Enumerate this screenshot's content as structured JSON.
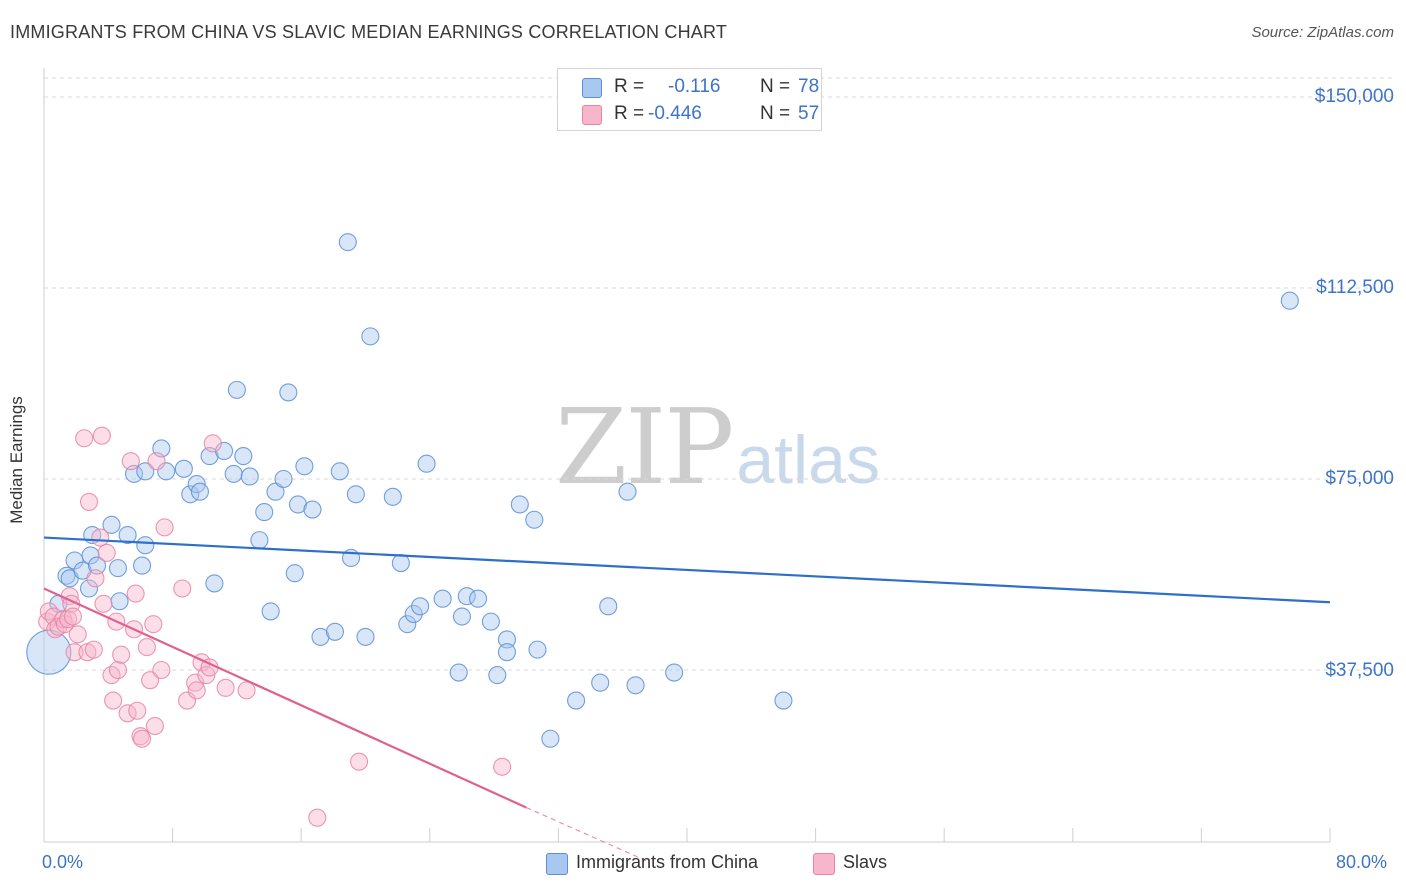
{
  "title": "IMMIGRANTS FROM CHINA VS SLAVIC MEDIAN EARNINGS CORRELATION CHART",
  "source": "Source: ZipAtlas.com",
  "watermark": {
    "zip": "ZIP",
    "atlas": "atlas"
  },
  "legend": {
    "r_label": "R =",
    "n_label": "N =",
    "rows": [
      {
        "r": "-0.116",
        "n": "78"
      },
      {
        "r": "-0.446",
        "n": "57"
      }
    ]
  },
  "colors": {
    "china_fill": "#a9c8ef",
    "china_stroke": "#5b8fd6",
    "china_line": "#2e6fcc",
    "slavs_fill": "#f7b6cb",
    "slavs_stroke": "#e685a5",
    "slavs_line": "#e0618f",
    "tick_text": "#3d74c6",
    "grid": "#d9d9d9"
  },
  "chart_data": {
    "type": "scatter",
    "title": "IMMIGRANTS FROM CHINA VS SLAVIC MEDIAN EARNINGS CORRELATION CHART",
    "xlabel": "",
    "ylabel": "Median Earnings",
    "xlim": [
      0,
      80
    ],
    "ylim": [
      0,
      155000
    ],
    "x_tick_labels": {
      "min": "0.0%",
      "max": "80.0%"
    },
    "y_ticks": [
      {
        "value": 37500,
        "label": "$37,500"
      },
      {
        "value": 75000,
        "label": "$75,000"
      },
      {
        "value": 112500,
        "label": "$112,500"
      },
      {
        "value": 150000,
        "label": "$150,000"
      }
    ],
    "series": [
      {
        "name": "Immigrants from China",
        "r": -0.116,
        "n": 78,
        "trend": {
          "x": [
            0,
            80
          ],
          "y": [
            63500,
            50800
          ]
        },
        "points": [
          [
            0.3,
            41000,
            3
          ],
          [
            0.9,
            50500,
            1
          ],
          [
            1.4,
            56000,
            1
          ],
          [
            1.6,
            55500,
            1
          ],
          [
            1.9,
            59000,
            1
          ],
          [
            2.4,
            57000,
            1
          ],
          [
            2.8,
            53500,
            1
          ],
          [
            2.9,
            60000,
            1
          ],
          [
            3.0,
            64000,
            1
          ],
          [
            3.3,
            58000,
            1
          ],
          [
            4.2,
            66000,
            1
          ],
          [
            4.6,
            57500,
            1
          ],
          [
            4.7,
            51000,
            1
          ],
          [
            5.2,
            64000,
            1
          ],
          [
            5.6,
            76000,
            1
          ],
          [
            6.1,
            58000,
            1
          ],
          [
            6.3,
            76500,
            1
          ],
          [
            6.3,
            62000,
            1
          ],
          [
            7.3,
            81000,
            1
          ],
          [
            7.6,
            76500,
            1
          ],
          [
            8.7,
            77000,
            1
          ],
          [
            9.1,
            72000,
            1
          ],
          [
            9.5,
            74000,
            1
          ],
          [
            9.7,
            72500,
            1
          ],
          [
            10.3,
            79500,
            1
          ],
          [
            10.6,
            54500,
            1
          ],
          [
            11.2,
            80500,
            1
          ],
          [
            11.8,
            76000,
            1
          ],
          [
            12.0,
            92500,
            1
          ],
          [
            12.4,
            79500,
            1
          ],
          [
            12.8,
            75500,
            1
          ],
          [
            13.4,
            63000,
            1
          ],
          [
            13.7,
            68500,
            1
          ],
          [
            14.1,
            49000,
            1
          ],
          [
            14.4,
            72500,
            1
          ],
          [
            14.9,
            75000,
            1
          ],
          [
            15.2,
            92000,
            1
          ],
          [
            15.6,
            56500,
            1
          ],
          [
            15.8,
            70000,
            1
          ],
          [
            16.2,
            77500,
            1
          ],
          [
            16.7,
            69000,
            1
          ],
          [
            17.2,
            44000,
            1
          ],
          [
            18.1,
            45000,
            1
          ],
          [
            18.4,
            76500,
            1
          ],
          [
            18.9,
            121500,
            1
          ],
          [
            19.1,
            59500,
            1
          ],
          [
            19.4,
            72000,
            1
          ],
          [
            20.0,
            44000,
            1
          ],
          [
            20.3,
            103000,
            1
          ],
          [
            21.7,
            71500,
            1
          ],
          [
            22.2,
            58500,
            1
          ],
          [
            22.6,
            46500,
            1
          ],
          [
            23.0,
            48500,
            1
          ],
          [
            23.4,
            50000,
            1
          ],
          [
            23.8,
            78000,
            1
          ],
          [
            24.8,
            51500,
            1
          ],
          [
            25.8,
            37000,
            1
          ],
          [
            26.0,
            48000,
            1
          ],
          [
            26.3,
            52000,
            1
          ],
          [
            27.0,
            51500,
            1
          ],
          [
            27.8,
            47000,
            1
          ],
          [
            28.2,
            36500,
            1
          ],
          [
            28.8,
            43500,
            1
          ],
          [
            28.8,
            41000,
            1
          ],
          [
            29.6,
            70000,
            1
          ],
          [
            30.5,
            67000,
            1
          ],
          [
            30.7,
            41500,
            1
          ],
          [
            31.5,
            24000,
            1
          ],
          [
            33.1,
            31500,
            1
          ],
          [
            34.6,
            35000,
            1
          ],
          [
            35.1,
            50000,
            1
          ],
          [
            36.3,
            72500,
            1
          ],
          [
            36.8,
            34500,
            1
          ],
          [
            39.2,
            37000,
            1
          ],
          [
            46.0,
            31500,
            1
          ],
          [
            77.5,
            110000,
            1
          ]
        ]
      },
      {
        "name": "Slavs",
        "r": -0.446,
        "n": 57,
        "trend": {
          "x": [
            0,
            30
          ],
          "y": [
            53500,
            10500
          ]
        },
        "trend_dashed": {
          "x": [
            30,
            37.5
          ],
          "y": [
            10500,
            0
          ]
        },
        "points": [
          [
            0.2,
            47000,
            1
          ],
          [
            0.3,
            49000,
            1
          ],
          [
            0.6,
            48000,
            1
          ],
          [
            0.7,
            45500,
            1
          ],
          [
            0.9,
            46000,
            1
          ],
          [
            1.2,
            47500,
            1
          ],
          [
            1.3,
            46500,
            1
          ],
          [
            1.5,
            47500,
            1
          ],
          [
            1.6,
            52000,
            1
          ],
          [
            1.7,
            50500,
            1
          ],
          [
            1.8,
            48000,
            1
          ],
          [
            1.9,
            41000,
            1
          ],
          [
            2.1,
            44500,
            1
          ],
          [
            2.5,
            83000,
            1
          ],
          [
            2.7,
            41000,
            1
          ],
          [
            2.8,
            70500,
            1
          ],
          [
            3.1,
            41500,
            1
          ],
          [
            3.2,
            55500,
            1
          ],
          [
            3.5,
            63500,
            1
          ],
          [
            3.6,
            83500,
            1
          ],
          [
            3.7,
            50500,
            1
          ],
          [
            3.9,
            60500,
            1
          ],
          [
            4.2,
            36500,
            1
          ],
          [
            4.3,
            31500,
            1
          ],
          [
            4.5,
            47000,
            1
          ],
          [
            4.6,
            37500,
            1
          ],
          [
            4.8,
            40500,
            1
          ],
          [
            5.2,
            29000,
            1
          ],
          [
            5.4,
            78500,
            1
          ],
          [
            5.6,
            45500,
            1
          ],
          [
            5.7,
            52500,
            1
          ],
          [
            5.8,
            29500,
            1
          ],
          [
            6.0,
            24500,
            1
          ],
          [
            6.1,
            24000,
            1
          ],
          [
            6.4,
            42000,
            1
          ],
          [
            6.6,
            35500,
            1
          ],
          [
            6.8,
            46500,
            1
          ],
          [
            6.9,
            26500,
            1
          ],
          [
            7.0,
            78500,
            1
          ],
          [
            7.3,
            37500,
            1
          ],
          [
            7.5,
            65500,
            1
          ],
          [
            8.6,
            53500,
            1
          ],
          [
            8.9,
            31500,
            1
          ],
          [
            9.4,
            35000,
            1
          ],
          [
            9.5,
            33500,
            1
          ],
          [
            9.8,
            39000,
            1
          ],
          [
            10.1,
            36500,
            1
          ],
          [
            10.3,
            38000,
            1
          ],
          [
            10.5,
            82000,
            1
          ],
          [
            11.3,
            34000,
            1
          ],
          [
            12.6,
            33500,
            1
          ],
          [
            17.0,
            8500,
            1
          ],
          [
            19.6,
            19500,
            1
          ],
          [
            28.5,
            18500,
            1
          ]
        ]
      }
    ]
  },
  "bottom_legend": {
    "china": "Immigrants from China",
    "slavs": "Slavs"
  }
}
